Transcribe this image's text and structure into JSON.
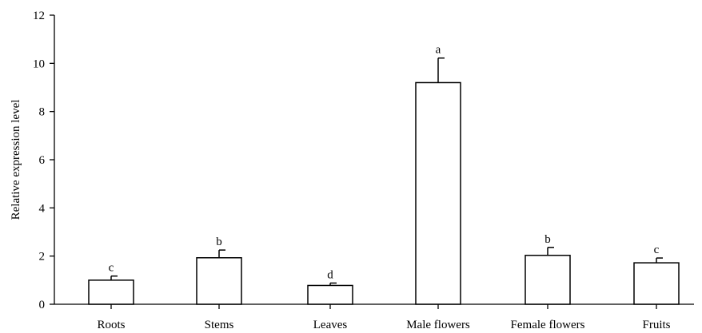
{
  "chart_data": {
    "type": "bar",
    "title": "",
    "xlabel": "",
    "ylabel": "Relative expression level",
    "ylim": [
      0,
      12
    ],
    "yticks": [
      0,
      2,
      4,
      6,
      8,
      10,
      12
    ],
    "grid": false,
    "legend": "none",
    "categories": [
      "Roots",
      "Stems",
      "Leaves",
      "Male flowers",
      "Female flowers",
      "Fruits"
    ],
    "values": [
      1.0,
      1.93,
      0.78,
      9.2,
      2.03,
      1.72
    ],
    "errors": [
      0.17,
      0.32,
      0.1,
      1.02,
      0.33,
      0.2
    ],
    "significance": [
      "c",
      "b",
      "d",
      "a",
      "b",
      "c"
    ],
    "colors": {
      "bar_fill": "#ffffff",
      "bar_stroke": "#000000"
    }
  }
}
